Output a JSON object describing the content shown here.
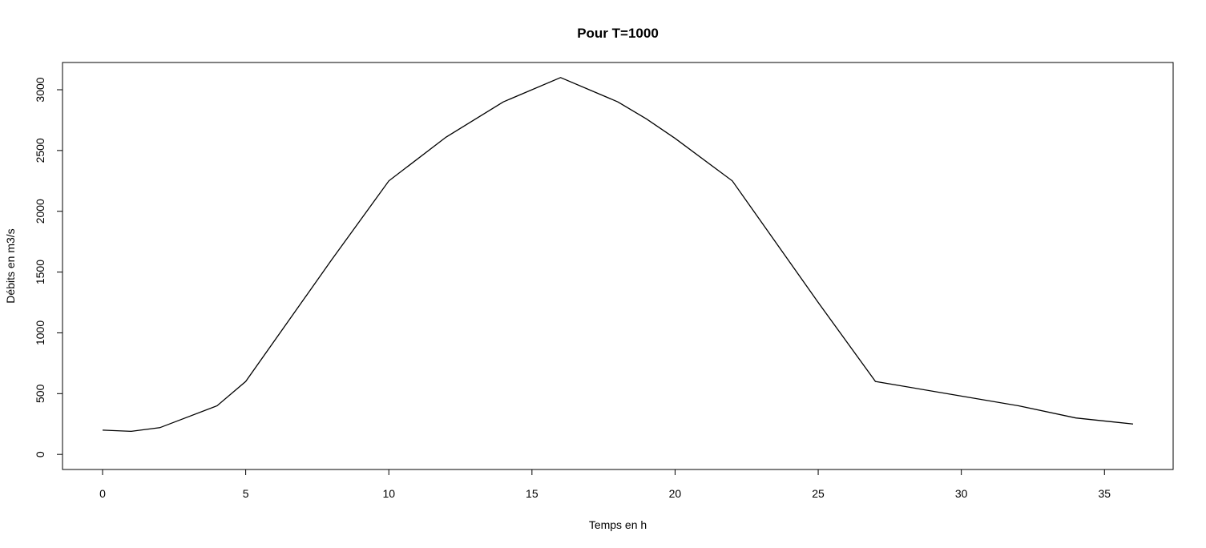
{
  "chart_data": {
    "type": "line",
    "title": "Pour T=1000",
    "xlabel": "Temps en h",
    "ylabel": "Débits en m3/s",
    "xlim": [
      -1.4,
      37.4
    ],
    "ylim": [
      -124,
      3224
    ],
    "xticks": [
      0,
      5,
      10,
      15,
      20,
      25,
      30,
      35
    ],
    "yticks": [
      0,
      500,
      1000,
      1500,
      2000,
      2500,
      3000
    ],
    "grid": false,
    "legend": "none",
    "line_color": "#000000",
    "series": [
      {
        "x": [
          0,
          1,
          2,
          4,
          5,
          8,
          10,
          12,
          14,
          16,
          18,
          19,
          20,
          22,
          25,
          27,
          30,
          32,
          34,
          36
        ],
        "y": [
          200,
          190,
          220,
          400,
          600,
          1600,
          2250,
          2610,
          2900,
          3100,
          2900,
          2760,
          2600,
          2250,
          1250,
          600,
          480,
          400,
          300,
          250
        ]
      }
    ]
  }
}
